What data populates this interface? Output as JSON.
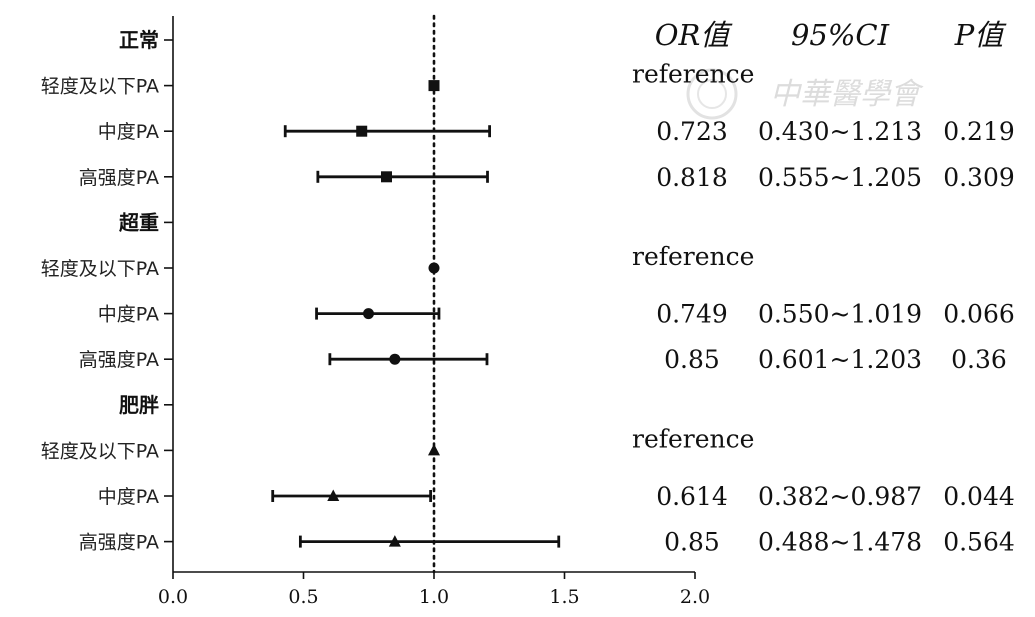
{
  "chart_data": {
    "type": "forest",
    "xlim": [
      0.0,
      2.0
    ],
    "x_ticks": [
      "0.0",
      "0.5",
      "1.0",
      "1.5",
      "2.0"
    ],
    "reference_line": 1.0,
    "headers": {
      "or": "OR值",
      "ci": "95%CI",
      "p": "P值"
    },
    "groups": [
      {
        "label": "正常",
        "marker": "square",
        "rows": [
          {
            "label": "轻度及以下PA",
            "or": 1.0,
            "lo": null,
            "hi": null,
            "or_text": "reference",
            "ci_text": "",
            "p_text": ""
          },
          {
            "label": "中度PA",
            "or": 0.723,
            "lo": 0.43,
            "hi": 1.213,
            "or_text": "0.723",
            "ci_text": "0.430~1.213",
            "p_text": "0.219"
          },
          {
            "label": "高强度PA",
            "or": 0.818,
            "lo": 0.555,
            "hi": 1.205,
            "or_text": "0.818",
            "ci_text": "0.555~1.205",
            "p_text": "0.309"
          }
        ]
      },
      {
        "label": "超重",
        "marker": "circle",
        "rows": [
          {
            "label": "轻度及以下PA",
            "or": 1.0,
            "lo": null,
            "hi": null,
            "or_text": "reference",
            "ci_text": "",
            "p_text": ""
          },
          {
            "label": "中度PA",
            "or": 0.749,
            "lo": 0.55,
            "hi": 1.019,
            "or_text": "0.749",
            "ci_text": "0.550~1.019",
            "p_text": "0.066"
          },
          {
            "label": "高强度PA",
            "or": 0.85,
            "lo": 0.601,
            "hi": 1.203,
            "or_text": "0.85",
            "ci_text": "0.601~1.203",
            "p_text": "0.36"
          }
        ]
      },
      {
        "label": "肥胖",
        "marker": "triangle",
        "rows": [
          {
            "label": "轻度及以下PA",
            "or": 1.0,
            "lo": null,
            "hi": null,
            "or_text": "reference",
            "ci_text": "",
            "p_text": ""
          },
          {
            "label": "中度PA",
            "or": 0.614,
            "lo": 0.382,
            "hi": 0.987,
            "or_text": "0.614",
            "ci_text": "0.382~0.987",
            "p_text": "0.044"
          },
          {
            "label": "高强度PA",
            "or": 0.85,
            "lo": 0.488,
            "hi": 1.478,
            "or_text": "0.85",
            "ci_text": "0.488~1.478",
            "p_text": "0.564"
          }
        ]
      }
    ]
  },
  "watermark": {
    "text": "中華醫學會"
  }
}
